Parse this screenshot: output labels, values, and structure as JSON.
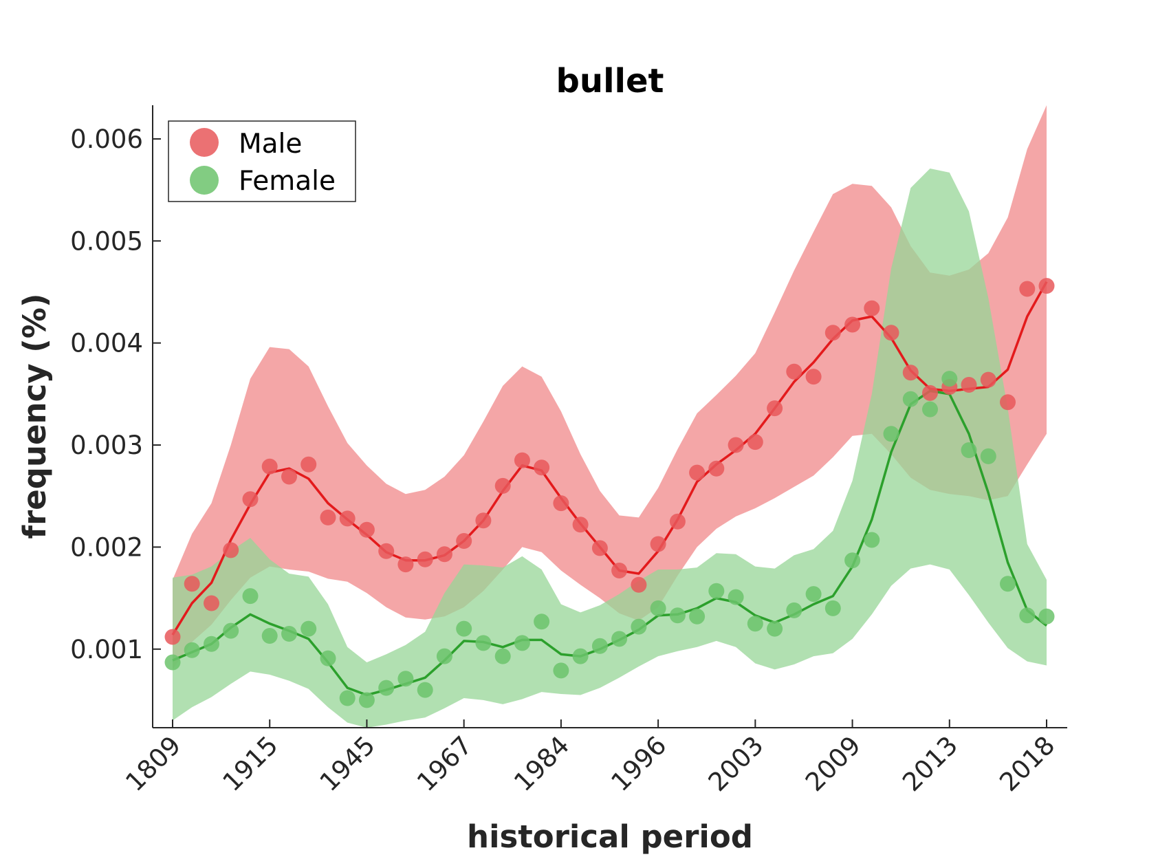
{
  "chart_data": {
    "type": "line",
    "title": "bullet",
    "xlabel": "historical period",
    "ylabel": "frequency (%)",
    "x_tick_labels": [
      "1809",
      "1915",
      "1945",
      "1967",
      "1984",
      "1996",
      "2003",
      "2009",
      "2013",
      "2018"
    ],
    "y_tick_labels": [
      "0.001",
      "0.002",
      "0.003",
      "0.004",
      "0.005",
      "0.006"
    ],
    "y_ticks": [
      0.001,
      0.002,
      0.003,
      0.004,
      0.005,
      0.006
    ],
    "ylim": [
      0.00023,
      0.00633
    ],
    "n_points": 46,
    "grid": false,
    "legend_position": "top-left",
    "series": [
      {
        "name": "Male",
        "color": "#e31a1c",
        "marker_color": "#e8585a",
        "band_color": "#f0888a",
        "points": [
          0.00112,
          0.00164,
          0.00145,
          0.00197,
          0.00247,
          0.00279,
          0.00269,
          0.00281,
          0.00229,
          0.00228,
          0.00217,
          0.00196,
          0.00183,
          0.00188,
          0.00193,
          0.00206,
          0.00226,
          0.0026,
          0.00285,
          0.00278,
          0.00243,
          0.00222,
          0.00199,
          0.00177,
          0.00163,
          0.00203,
          0.00225,
          0.00273,
          0.00277,
          0.003,
          0.00303,
          0.00336,
          0.00372,
          0.00367,
          0.0041,
          0.00418,
          0.00434,
          0.0041,
          0.00371,
          0.00351,
          0.00357,
          0.00359,
          0.00364,
          0.00342,
          0.00453,
          0.00456
        ],
        "trend": [
          0.00114,
          0.00145,
          0.00165,
          0.00207,
          0.00242,
          0.00273,
          0.00277,
          0.00267,
          0.00243,
          0.00227,
          0.00212,
          0.00195,
          0.00187,
          0.00187,
          0.00192,
          0.00206,
          0.00226,
          0.00255,
          0.0028,
          0.00275,
          0.00248,
          0.00223,
          0.002,
          0.00177,
          0.00174,
          0.00196,
          0.00227,
          0.00264,
          0.00281,
          0.00295,
          0.00311,
          0.00336,
          0.00362,
          0.00381,
          0.00404,
          0.00422,
          0.00426,
          0.00405,
          0.00373,
          0.00355,
          0.00353,
          0.00355,
          0.00357,
          0.00374,
          0.00426,
          0.0046
        ],
        "band_upper": [
          0.00168,
          0.00213,
          0.00243,
          0.003,
          0.00365,
          0.00396,
          0.00394,
          0.00377,
          0.00338,
          0.00302,
          0.0028,
          0.00262,
          0.00252,
          0.00256,
          0.00269,
          0.0029,
          0.00323,
          0.00358,
          0.00377,
          0.00367,
          0.00333,
          0.00291,
          0.00255,
          0.00231,
          0.00229,
          0.00258,
          0.00296,
          0.00331,
          0.00349,
          0.00368,
          0.0039,
          0.0043,
          0.00471,
          0.00509,
          0.00546,
          0.00556,
          0.00554,
          0.00533,
          0.00495,
          0.00469,
          0.00466,
          0.00472,
          0.00488,
          0.00523,
          0.0059,
          0.00633
        ],
        "band_lower": [
          0.0008,
          0.00107,
          0.00124,
          0.00148,
          0.0017,
          0.00181,
          0.00178,
          0.00176,
          0.00169,
          0.00166,
          0.00155,
          0.00141,
          0.00131,
          0.00129,
          0.00132,
          0.00141,
          0.00157,
          0.00178,
          0.002,
          0.00195,
          0.00177,
          0.00163,
          0.0015,
          0.00135,
          0.00128,
          0.00141,
          0.00172,
          0.002,
          0.00218,
          0.0023,
          0.00238,
          0.00248,
          0.00259,
          0.0027,
          0.00288,
          0.00309,
          0.00311,
          0.00291,
          0.00268,
          0.00256,
          0.00252,
          0.0025,
          0.00246,
          0.0025,
          0.00281,
          0.00311
        ]
      },
      {
        "name": "Female",
        "color": "#2ca02c",
        "marker_color": "#6cc36c",
        "band_color": "#97d597",
        "points": [
          0.00087,
          0.00099,
          0.00105,
          0.00118,
          0.00152,
          0.00113,
          0.00115,
          0.0012,
          0.00091,
          0.00052,
          0.0005,
          0.00062,
          0.00071,
          0.0006,
          0.00093,
          0.0012,
          0.00106,
          0.00093,
          0.00106,
          0.00127,
          0.00079,
          0.00093,
          0.00103,
          0.0011,
          0.00122,
          0.0014,
          0.00133,
          0.00132,
          0.00157,
          0.00151,
          0.00125,
          0.0012,
          0.00138,
          0.00154,
          0.0014,
          0.00187,
          0.00207,
          0.00311,
          0.00345,
          0.00335,
          0.00365,
          0.00295,
          0.00289,
          0.00164,
          0.00133,
          0.00132
        ],
        "trend": [
          0.00089,
          0.00097,
          0.00105,
          0.00121,
          0.00134,
          0.00125,
          0.00118,
          0.0011,
          0.00087,
          0.00062,
          0.00055,
          0.0006,
          0.00066,
          0.00072,
          0.00089,
          0.00108,
          0.00107,
          0.00102,
          0.00109,
          0.00109,
          0.00095,
          0.00093,
          0.001,
          0.00109,
          0.00119,
          0.00133,
          0.00134,
          0.0014,
          0.0015,
          0.00146,
          0.00133,
          0.00126,
          0.00134,
          0.00144,
          0.00152,
          0.00181,
          0.00227,
          0.00293,
          0.0034,
          0.00353,
          0.0035,
          0.00311,
          0.00253,
          0.00185,
          0.00138,
          0.00123
        ],
        "band_upper": [
          0.0017,
          0.00173,
          0.00181,
          0.00196,
          0.00209,
          0.00188,
          0.00174,
          0.00171,
          0.00144,
          0.00102,
          0.00087,
          0.00095,
          0.00104,
          0.00117,
          0.00155,
          0.00183,
          0.00182,
          0.0018,
          0.00191,
          0.00178,
          0.00144,
          0.00136,
          0.00143,
          0.00154,
          0.00167,
          0.00178,
          0.00178,
          0.0018,
          0.00194,
          0.00193,
          0.00181,
          0.00179,
          0.00192,
          0.00198,
          0.00216,
          0.00265,
          0.0035,
          0.00473,
          0.00552,
          0.00571,
          0.00567,
          0.00529,
          0.00444,
          0.00336,
          0.00203,
          0.00168
        ],
        "band_lower": [
          0.0003,
          0.00043,
          0.00053,
          0.00066,
          0.00078,
          0.00075,
          0.00069,
          0.00061,
          0.00043,
          0.00028,
          0.00023,
          0.00026,
          0.0003,
          0.00033,
          0.00042,
          0.00052,
          0.0005,
          0.00046,
          0.00051,
          0.00058,
          0.00056,
          0.00055,
          0.00062,
          0.00072,
          0.00083,
          0.00093,
          0.00098,
          0.00102,
          0.00108,
          0.00102,
          0.00086,
          0.0008,
          0.00085,
          0.00093,
          0.00096,
          0.0011,
          0.00134,
          0.00162,
          0.00179,
          0.00183,
          0.00178,
          0.00153,
          0.00126,
          0.00101,
          0.00088,
          0.00084
        ]
      }
    ]
  }
}
